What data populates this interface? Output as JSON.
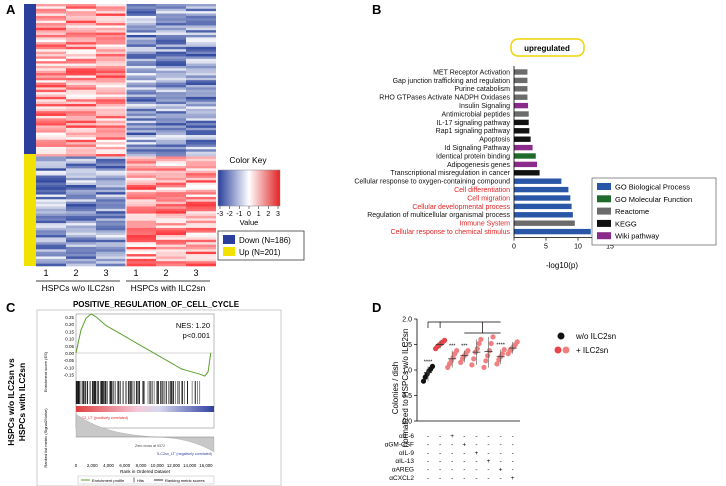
{
  "panels": {
    "A": "A",
    "B": "B",
    "C": "C",
    "D": "D"
  },
  "colors": {
    "blue_dark": "#2a3f9d",
    "red": "#e02424",
    "yellow": "#f2e200",
    "bp": "#2a56a8",
    "mf": "#1e6b2c",
    "reactome": "#6b6b6b",
    "kegg": "#111111",
    "wiki": "#8a2a8a",
    "green_line": "#5aa02c",
    "dot_red": "#e8454b",
    "dot_pink": "#f08080",
    "dot_black": "#111111"
  },
  "heatmap": {
    "groups": [
      {
        "name": "HSPCs w/o ILC2sn",
        "reps": [
          "1",
          "2",
          "3"
        ]
      },
      {
        "name": "HSPCs with ILC2sn",
        "reps": [
          "1",
          "2",
          "3"
        ]
      }
    ],
    "color_key": {
      "title": "Color Key",
      "ticks": [
        "-3",
        "-2",
        "-1",
        "0",
        "1",
        "2",
        "3"
      ],
      "xlabel": "Value"
    },
    "legend": [
      {
        "label": "Down (N=186)",
        "color": "#2a3f9d"
      },
      {
        "label": "Up (N=201)",
        "color": "#f2e200"
      }
    ]
  },
  "chart_data": [
    {
      "type": "bar",
      "orientation": "horizontal",
      "title": "upregulated",
      "xlabel": "-log10(p)",
      "xlim": [
        0,
        15
      ],
      "xticks": [
        "0",
        "5",
        "10",
        "15"
      ],
      "categories": [
        {
          "label": "MET Receptor Activation",
          "value": 2.1,
          "source": "Reactome",
          "highlight": false
        },
        {
          "label": "Gap junction trafficking and regulation",
          "value": 2.1,
          "source": "Reactome",
          "highlight": false
        },
        {
          "label": "Purine catabolism",
          "value": 2.1,
          "source": "Reactome",
          "highlight": false
        },
        {
          "label": "RHO GTPases Activate NADPH Oxidases",
          "value": 2.1,
          "source": "Reactome",
          "highlight": false
        },
        {
          "label": "Insulin Signaling",
          "value": 2.2,
          "source": "Wiki pathway",
          "highlight": false
        },
        {
          "label": "Antimicrobial peptides",
          "value": 2.3,
          "source": "Reactome",
          "highlight": false
        },
        {
          "label": "IL-17 signaling pathway",
          "value": 2.3,
          "source": "KEGG",
          "highlight": false
        },
        {
          "label": "Rap1 signaling pathway",
          "value": 2.4,
          "source": "KEGG",
          "highlight": false
        },
        {
          "label": "Apoptosis",
          "value": 2.6,
          "source": "KEGG",
          "highlight": false
        },
        {
          "label": "Id Signaling Pathway",
          "value": 2.9,
          "source": "Wiki pathway",
          "highlight": false
        },
        {
          "label": "Identical protein binding",
          "value": 3.4,
          "source": "GO Molecular Function",
          "highlight": false
        },
        {
          "label": "Adipogenesis genes",
          "value": 3.6,
          "source": "Wiki pathway",
          "highlight": false
        },
        {
          "label": "Transcriptional misregulation in cancer",
          "value": 4.0,
          "source": "KEGG",
          "highlight": false
        },
        {
          "label": "Cellular response to oxygen-containing compound",
          "value": 7.4,
          "source": "GO Biological Process",
          "highlight": false
        },
        {
          "label": "Cell differentiation",
          "value": 8.5,
          "source": "GO Biological Process",
          "highlight": true
        },
        {
          "label": "Cell migration",
          "value": 8.8,
          "source": "GO Biological Process",
          "highlight": true
        },
        {
          "label": "Cellular developmental process",
          "value": 9.0,
          "source": "GO Biological Process",
          "highlight": true
        },
        {
          "label": "Regulation of multicellular organismal process",
          "value": 9.2,
          "source": "GO Biological Process",
          "highlight": false
        },
        {
          "label": "Immune System",
          "value": 9.5,
          "source": "Reactome",
          "highlight": true
        },
        {
          "label": "Cellular response to chemical stimulus",
          "value": 12.0,
          "source": "GO Biological Process",
          "highlight": true
        }
      ],
      "legend": [
        {
          "label": "GO Biological Process",
          "color": "#2a56a8"
        },
        {
          "label": "GO Molecular Function",
          "color": "#1e6b2c"
        },
        {
          "label": "Reactome",
          "color": "#6b6b6b"
        },
        {
          "label": "KEGG",
          "color": "#111111"
        },
        {
          "label": "Wiki pathway",
          "color": "#8a2a8a"
        }
      ]
    },
    {
      "type": "line",
      "title": "POSITIVE_REGULATION_OF_CELL_CYCLE",
      "nes": "NES: 1.20",
      "pval": "p<0.001",
      "ylabel_outer": [
        "HSPCs w/o ILC2sn vs",
        "HSPCs with ILC2sn"
      ],
      "ylabel_es": "Enrichment score (ES)",
      "ylabel_rank": "Ranked list metric (Signal2Noise)",
      "xlabel": "Rank in Ordered Dataset",
      "yticks": [
        "0.25",
        "0.20",
        "0.15",
        "0.10",
        "0.05",
        "0.00",
        "-0.05",
        "-0.10",
        "-0.15"
      ],
      "xticks": [
        "0",
        "2,000",
        "4,000",
        "6,000",
        "8,000",
        "10,000",
        "12,000",
        "14,000",
        "16,000"
      ],
      "pos_label": "'ILC2_LT' (positively correlated)",
      "neg_label": "'ILC2sn_LT' (negatively correlated)",
      "zero_cross": "Zero cross at 9372",
      "legend": [
        "Enrichment profile",
        "Hits",
        "Ranking metric scores"
      ],
      "x": [
        0,
        600,
        1200,
        1800,
        2400,
        3000,
        3600,
        4200,
        4800,
        5400,
        6000,
        6600,
        7200,
        7800,
        8400,
        9000,
        9600,
        10200,
        10800,
        11400,
        12000,
        12600,
        13200,
        13800,
        14400,
        15000,
        15400,
        15800,
        16100
      ],
      "y": [
        0.0,
        0.16,
        0.24,
        0.27,
        0.25,
        0.22,
        0.19,
        0.17,
        0.15,
        0.13,
        0.11,
        0.09,
        0.07,
        0.05,
        0.03,
        0.01,
        -0.01,
        -0.03,
        -0.05,
        -0.07,
        -0.09,
        -0.11,
        -0.12,
        -0.13,
        -0.14,
        -0.15,
        -0.16,
        -0.13,
        0.0
      ]
    },
    {
      "type": "scatter",
      "ylabel": [
        "Colonies / dish",
        "normalized to HSPCs w/o ILC2sn"
      ],
      "ylim": [
        0.0,
        2.0
      ],
      "yticks": [
        "0.0",
        "0.5",
        "1.0",
        "1.5",
        "2.0"
      ],
      "legend": [
        {
          "label": "w/o ILC2sn",
          "color": "#111111"
        },
        {
          "label": "+ ILC2sn",
          "color": "#e8454b"
        }
      ],
      "treatments": [
        "αIL-6",
        "αGM-CSF",
        "αIL-9",
        "αIL-13",
        "αAREG",
        "αCXCL2"
      ],
      "signs": [
        [
          "-",
          "-",
          "+",
          "-",
          "-",
          "-",
          "-",
          "-"
        ],
        [
          "-",
          "-",
          "-",
          "+",
          "-",
          "-",
          "-",
          "-"
        ],
        [
          "-",
          "-",
          "-",
          "-",
          "+",
          "-",
          "-",
          "-"
        ],
        [
          "-",
          "-",
          "-",
          "-",
          "-",
          "+",
          "-",
          "-"
        ],
        [
          "-",
          "-",
          "-",
          "-",
          "-",
          "-",
          "+",
          "-"
        ],
        [
          "-",
          "-",
          "-",
          "-",
          "-",
          "-",
          "-",
          "+"
        ]
      ],
      "groups": [
        {
          "values": [
            0.78,
            0.86,
            0.92,
            0.98,
            1.02,
            1.07
          ],
          "mean": 0.95,
          "sig": "****",
          "color": "#111111"
        },
        {
          "values": [
            1.42,
            1.46,
            1.49,
            1.52,
            1.55,
            1.58
          ],
          "mean": 1.5,
          "sig": "",
          "color": "#e8454b"
        },
        {
          "values": [
            1.05,
            1.12,
            1.18,
            1.25,
            1.32,
            1.38
          ],
          "mean": 1.22,
          "sig": "***",
          "color": "#f08080"
        },
        {
          "values": [
            1.15,
            1.22,
            1.28,
            1.33,
            1.38
          ],
          "mean": 1.28,
          "sig": "***",
          "color": "#f08080"
        },
        {
          "values": [
            1.1,
            1.22,
            1.35,
            1.42,
            1.52,
            1.6
          ],
          "mean": 1.35,
          "sig": "",
          "color": "#f08080"
        },
        {
          "values": [
            1.05,
            1.18,
            1.28,
            1.38,
            1.52,
            1.65
          ],
          "mean": 1.36,
          "sig": "",
          "color": "#f08080"
        },
        {
          "values": [
            1.12,
            1.2,
            1.26,
            1.32,
            1.4
          ],
          "mean": 1.26,
          "sig": "****",
          "color": "#f08080"
        },
        {
          "values": [
            1.32,
            1.38,
            1.42,
            1.46,
            1.5,
            1.55
          ],
          "mean": 1.43,
          "sig": "",
          "color": "#f08080"
        }
      ]
    }
  ]
}
